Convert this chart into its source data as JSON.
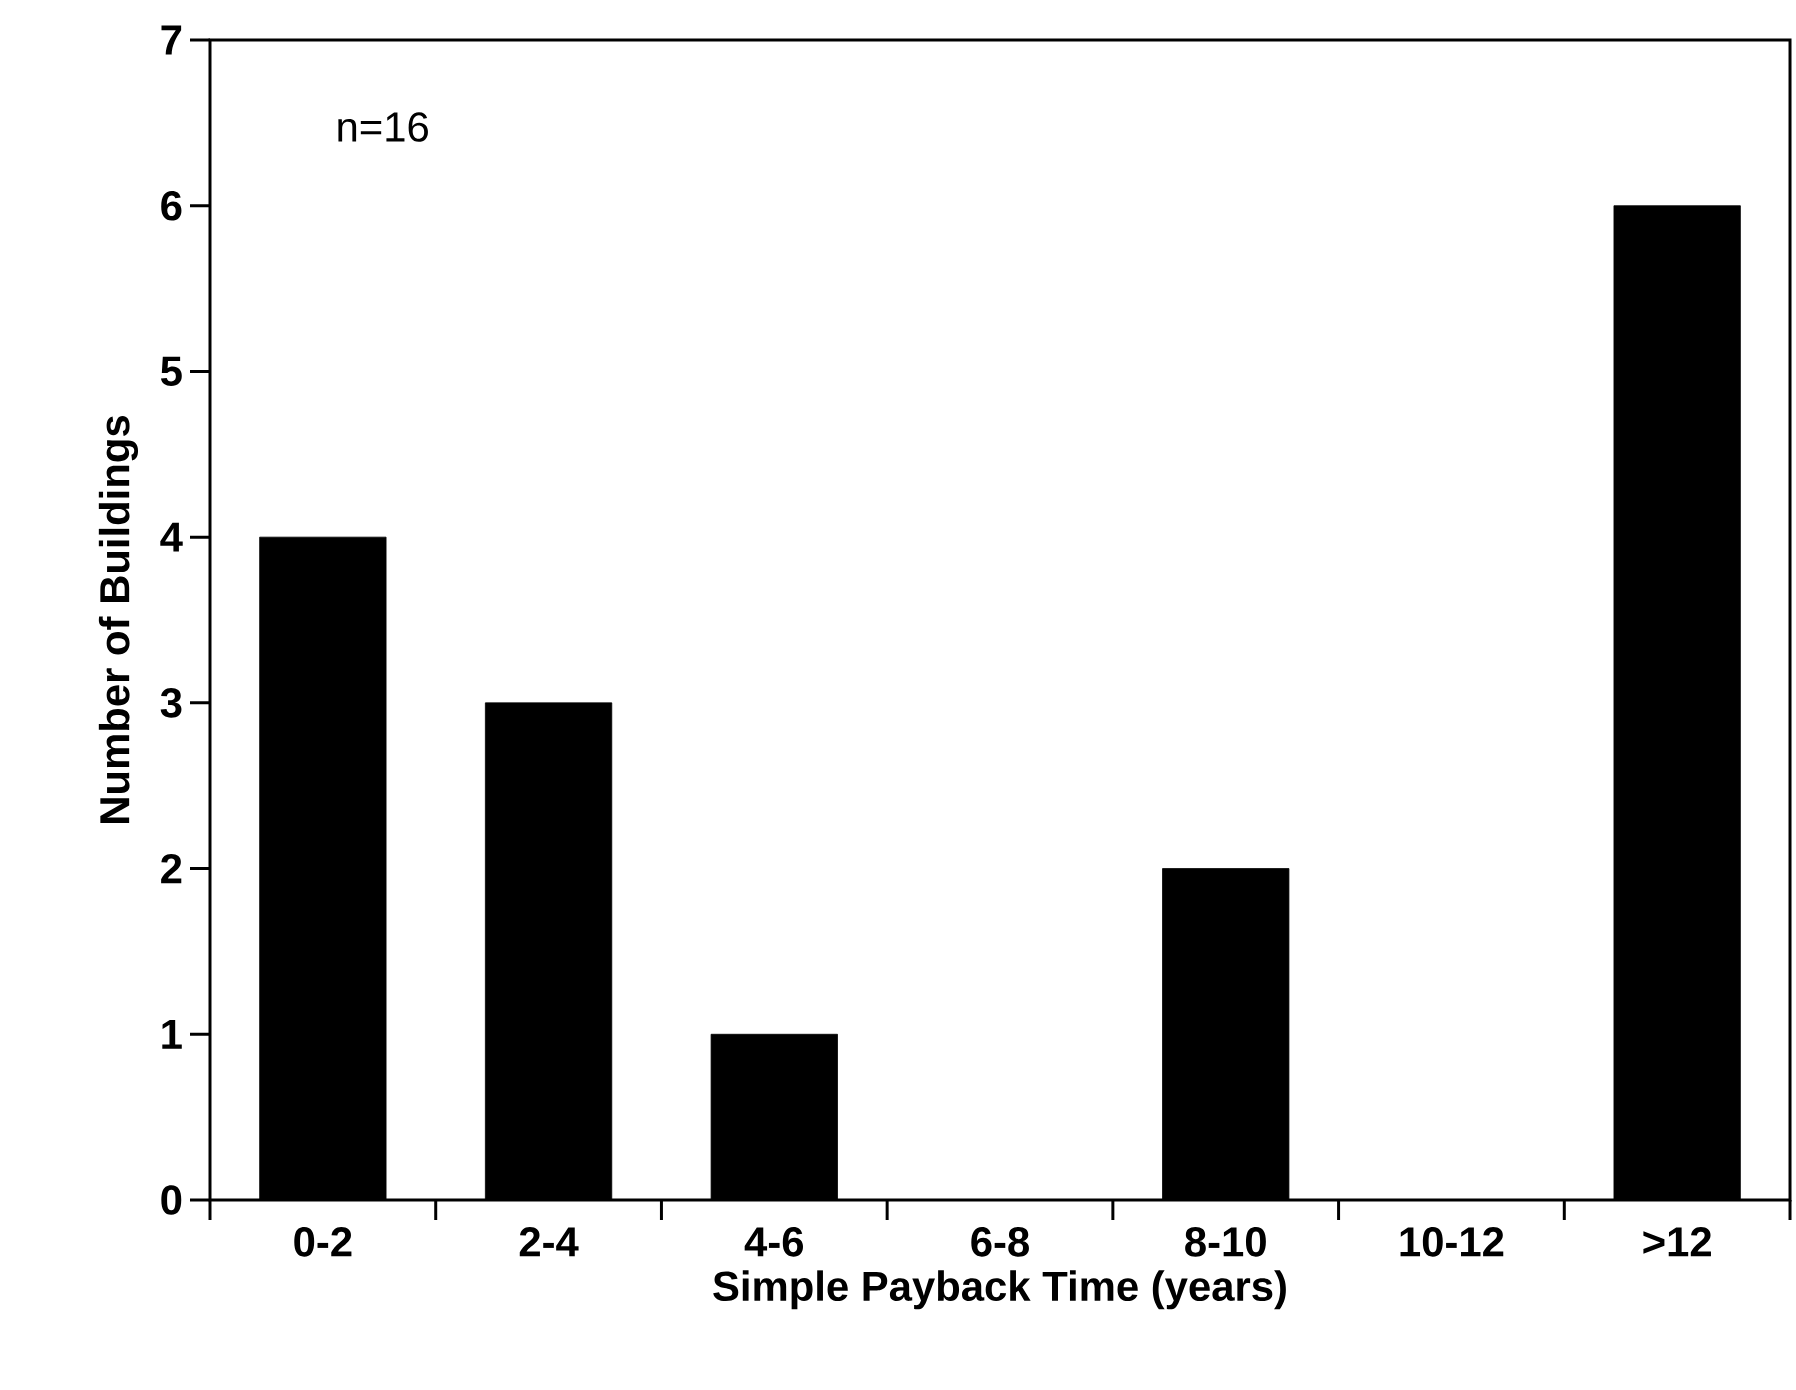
{
  "chart_data": {
    "type": "bar",
    "categories": [
      "0-2",
      "2-4",
      "4-6",
      "6-8",
      "8-10",
      "10-12",
      ">12"
    ],
    "values": [
      4,
      3,
      1,
      0,
      2,
      0,
      6
    ],
    "color": "#000000",
    "xlabel": "Simple Payback Time (years)",
    "ylabel": "Number of Buildings",
    "ylim": [
      0,
      7
    ],
    "yticks": [
      0,
      1,
      2,
      3,
      4,
      5,
      6,
      7
    ],
    "annotations": [
      "n=16"
    ]
  }
}
